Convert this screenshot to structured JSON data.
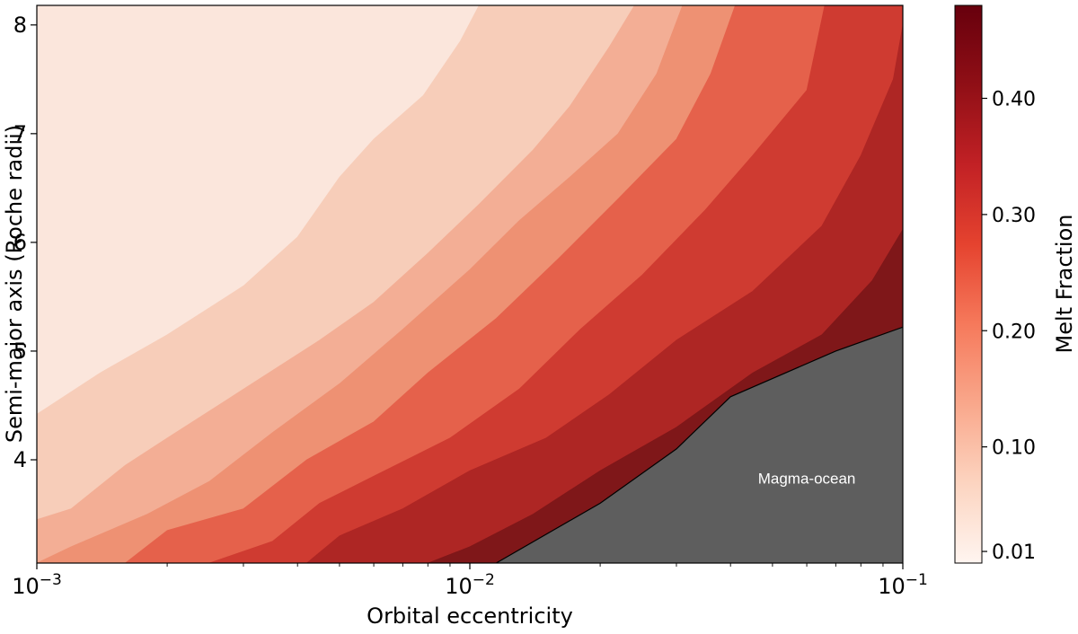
{
  "chart_data": {
    "type": "contour",
    "title": "",
    "xlabel": "Orbital eccentricity",
    "ylabel": "Semi-major axis (Roche radii)",
    "x_scale": "log",
    "xlim": [
      0.001,
      0.1
    ],
    "ylim": [
      3.05,
      8.18
    ],
    "x_ticks": [
      {
        "value": 0.001,
        "base": "10",
        "exp": "−3"
      },
      {
        "value": 0.01,
        "base": "10",
        "exp": "−2"
      },
      {
        "value": 0.1,
        "base": "10",
        "exp": "−1"
      }
    ],
    "y_ticks": [
      {
        "value": 4,
        "label": "4"
      },
      {
        "value": 5,
        "label": "5"
      },
      {
        "value": 6,
        "label": "6"
      },
      {
        "value": 7,
        "label": "7"
      },
      {
        "value": 8,
        "label": "8"
      }
    ],
    "background_color": "#fbe6dc",
    "contour_levels": [
      {
        "level": 0.05,
        "color": "#f7cdb9",
        "boundary": [
          [
            0.001,
            4.42
          ],
          [
            0.0014,
            4.8
          ],
          [
            0.002,
            5.15
          ],
          [
            0.003,
            5.6
          ],
          [
            0.004,
            6.05
          ],
          [
            0.005,
            6.6
          ],
          [
            0.006,
            6.95
          ],
          [
            0.0078,
            7.35
          ],
          [
            0.0095,
            7.85
          ],
          [
            0.0105,
            8.18
          ]
        ]
      },
      {
        "level": 0.1,
        "color": "#f3ae95",
        "boundary": [
          [
            0.001,
            3.45
          ],
          [
            0.0012,
            3.55
          ],
          [
            0.0016,
            3.95
          ],
          [
            0.002,
            4.2
          ],
          [
            0.003,
            4.65
          ],
          [
            0.0045,
            5.1
          ],
          [
            0.006,
            5.45
          ],
          [
            0.008,
            5.9
          ],
          [
            0.0105,
            6.35
          ],
          [
            0.014,
            6.85
          ],
          [
            0.017,
            7.25
          ],
          [
            0.021,
            7.8
          ],
          [
            0.024,
            8.18
          ]
        ]
      },
      {
        "level": 0.15,
        "color": "#ee9173",
        "boundary": [
          [
            0.001,
            3.05
          ],
          [
            0.0012,
            3.2
          ],
          [
            0.0018,
            3.5
          ],
          [
            0.0025,
            3.8
          ],
          [
            0.0035,
            4.25
          ],
          [
            0.005,
            4.7
          ],
          [
            0.007,
            5.2
          ],
          [
            0.01,
            5.75
          ],
          [
            0.013,
            6.2
          ],
          [
            0.017,
            6.6
          ],
          [
            0.022,
            7.0
          ],
          [
            0.027,
            7.55
          ],
          [
            0.031,
            8.18
          ]
        ]
      },
      {
        "level": 0.2,
        "color": "#e5614b",
        "boundary": [
          [
            0.0016,
            3.05
          ],
          [
            0.002,
            3.35
          ],
          [
            0.003,
            3.55
          ],
          [
            0.0042,
            4.0
          ],
          [
            0.006,
            4.35
          ],
          [
            0.008,
            4.8
          ],
          [
            0.0115,
            5.3
          ],
          [
            0.016,
            5.85
          ],
          [
            0.022,
            6.4
          ],
          [
            0.03,
            6.95
          ],
          [
            0.036,
            7.55
          ],
          [
            0.041,
            8.18
          ]
        ]
      },
      {
        "level": 0.3,
        "color": "#cf3b31",
        "boundary": [
          [
            0.0025,
            3.05
          ],
          [
            0.0035,
            3.25
          ],
          [
            0.0045,
            3.6
          ],
          [
            0.006,
            3.85
          ],
          [
            0.009,
            4.2
          ],
          [
            0.013,
            4.65
          ],
          [
            0.018,
            5.2
          ],
          [
            0.025,
            5.7
          ],
          [
            0.035,
            6.3
          ],
          [
            0.045,
            6.8
          ],
          [
            0.06,
            7.4
          ],
          [
            0.066,
            8.18
          ]
        ]
      },
      {
        "level": 0.4,
        "color": "#ae2624",
        "boundary": [
          [
            0.0042,
            3.05
          ],
          [
            0.005,
            3.3
          ],
          [
            0.007,
            3.55
          ],
          [
            0.01,
            3.9
          ],
          [
            0.015,
            4.2
          ],
          [
            0.021,
            4.6
          ],
          [
            0.03,
            5.1
          ],
          [
            0.045,
            5.55
          ],
          [
            0.065,
            6.15
          ],
          [
            0.08,
            6.8
          ],
          [
            0.095,
            7.5
          ],
          [
            0.1,
            8.0
          ]
        ]
      },
      {
        "level": 0.45,
        "color": "#7f1719",
        "boundary": [
          [
            0.008,
            3.05
          ],
          [
            0.01,
            3.2
          ],
          [
            0.014,
            3.5
          ],
          [
            0.02,
            3.9
          ],
          [
            0.03,
            4.3
          ],
          [
            0.045,
            4.8
          ],
          [
            0.065,
            5.15
          ],
          [
            0.085,
            5.65
          ],
          [
            0.1,
            6.12
          ]
        ]
      }
    ],
    "magma_ocean": {
      "label": "Magma-ocean",
      "color": "#5e5e5e",
      "label_at": [
        0.06,
        3.78
      ],
      "boundary": [
        [
          0.0115,
          3.05
        ],
        [
          0.02,
          3.6
        ],
        [
          0.03,
          4.1
        ],
        [
          0.04,
          4.58
        ],
        [
          0.07,
          5.0
        ],
        [
          0.1,
          5.22
        ]
      ]
    },
    "colorbar": {
      "label": "Melt Fraction",
      "range": [
        0.0,
        0.48
      ],
      "colors": [
        "#fff5f0",
        "#fcd4c0",
        "#f9a78b",
        "#f6795b",
        "#e5432f",
        "#c22125",
        "#900f16",
        "#67000d"
      ],
      "ticks": [
        {
          "value": 0.01,
          "label": "0.01"
        },
        {
          "value": 0.1,
          "label": "0.10"
        },
        {
          "value": 0.2,
          "label": "0.20"
        },
        {
          "value": 0.3,
          "label": "0.30"
        },
        {
          "value": 0.4,
          "label": "0.40"
        }
      ]
    }
  }
}
